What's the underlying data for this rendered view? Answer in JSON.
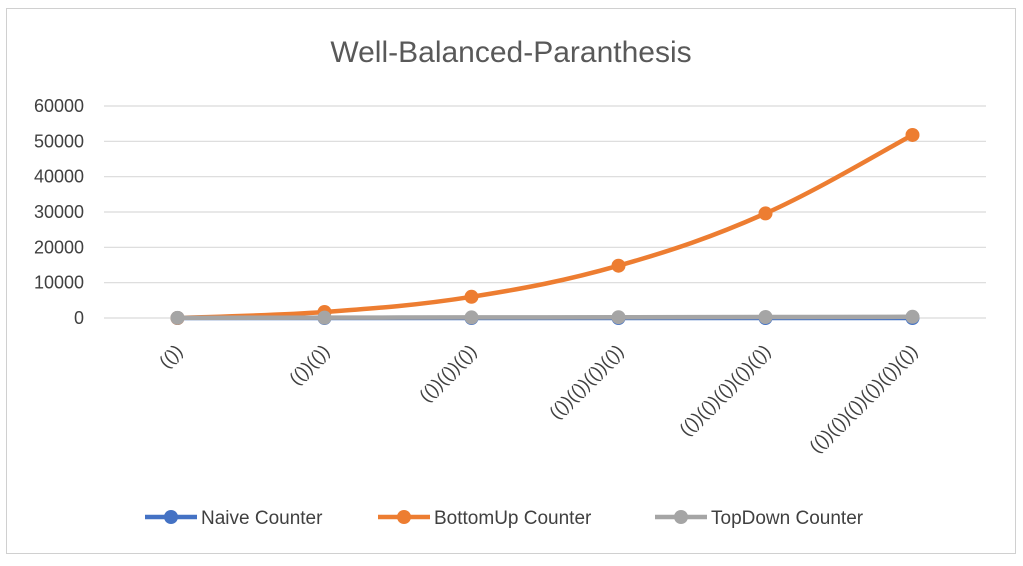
{
  "chart_data": {
    "type": "line",
    "title": "Well-Balanced-Paranthesis",
    "xlabel": "",
    "ylabel": "",
    "categories": [
      "(())",
      "(())(())",
      "(())(())(())",
      "(())(())(())(())",
      "(())(())(())(())(())",
      "(())(())(())(())(())(())"
    ],
    "ylim": [
      0,
      60000
    ],
    "yticks": [
      0,
      10000,
      20000,
      30000,
      40000,
      50000,
      60000
    ],
    "grid": true,
    "legend_position": "bottom",
    "series": [
      {
        "name": "Naive Counter",
        "color": "#4472C4",
        "values": [
          0,
          0,
          0,
          0,
          0,
          0
        ]
      },
      {
        "name": "BottomUp Counter",
        "color": "#ED7D31",
        "values": [
          0,
          1700,
          6000,
          14800,
          29600,
          51800
        ]
      },
      {
        "name": "TopDown Counter",
        "color": "#A5A5A5",
        "values": [
          40,
          100,
          160,
          220,
          280,
          340
        ]
      }
    ]
  }
}
